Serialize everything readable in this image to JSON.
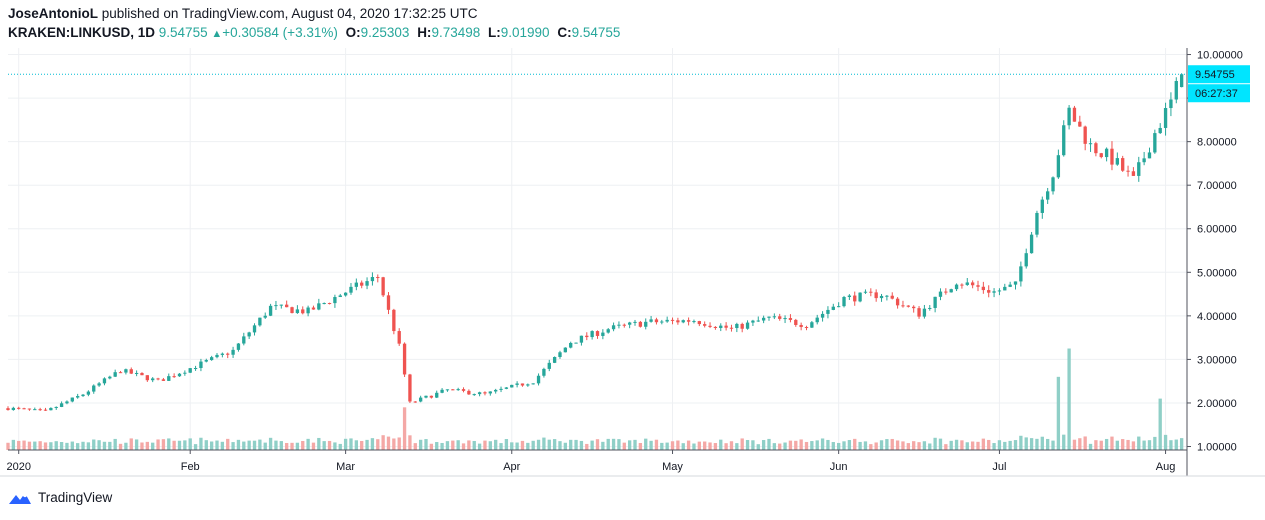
{
  "header": {
    "author": "JoseAntonioL",
    "published_text": "published on TradingView.com, August 04, 2020 17:32:25 UTC",
    "symbol": "KRAKEN:LINKUSD, 1D",
    "last": "9.54755",
    "change": "+0.30584 (+3.31%)",
    "open_label": "O:",
    "open": "9.25303",
    "high_label": "H:",
    "high": "9.73498",
    "low_label": "L:",
    "low": "9.01990",
    "close_label": "C:",
    "close": "9.54755"
  },
  "price_tag": {
    "value": "9.54755",
    "countdown": "06:27:37"
  },
  "footer": {
    "brand": "TradingView",
    "logo_icon": "tradingview-logo-icon"
  },
  "colors": {
    "up": "#26a69a",
    "down": "#ef5350",
    "up_vol": "#8fcfc7",
    "down_vol": "#f4a8a6",
    "grid": "#eef0f3",
    "tag": "#00e5ff"
  },
  "chart_data": {
    "type": "candlestick",
    "y_ticks": [
      "10.00000",
      "9.00000",
      "8.00000",
      "7.00000",
      "6.00000",
      "5.00000",
      "4.00000",
      "3.00000",
      "2.00000",
      "1.00000"
    ],
    "x_ticks": [
      "2020",
      "Feb",
      "Mar",
      "Apr",
      "May",
      "Jun",
      "Jul",
      "Aug"
    ],
    "ylim": [
      0.92,
      10.15
    ],
    "grid": true,
    "close_path": [
      [
        "2019-12-29",
        1.88
      ],
      [
        "2020-01-05",
        1.8
      ],
      [
        "2020-01-12",
        2.2
      ],
      [
        "2020-01-19",
        2.75
      ],
      [
        "2020-01-26",
        2.5
      ],
      [
        "2020-02-02",
        2.85
      ],
      [
        "2020-02-09",
        3.2
      ],
      [
        "2020-02-16",
        4.2
      ],
      [
        "2020-02-23",
        4.1
      ],
      [
        "2020-03-01",
        4.55
      ],
      [
        "2020-03-07",
        4.9
      ],
      [
        "2020-03-11",
        3.3
      ],
      [
        "2020-03-13",
        2.0
      ],
      [
        "2020-03-20",
        2.3
      ],
      [
        "2020-03-27",
        2.2
      ],
      [
        "2020-04-05",
        2.5
      ],
      [
        "2020-04-12",
        3.4
      ],
      [
        "2020-04-19",
        3.7
      ],
      [
        "2020-04-26",
        3.85
      ],
      [
        "2020-05-05",
        3.9
      ],
      [
        "2020-05-12",
        3.7
      ],
      [
        "2020-05-19",
        3.95
      ],
      [
        "2020-05-26",
        3.8
      ],
      [
        "2020-06-02",
        4.4
      ],
      [
        "2020-06-09",
        4.5
      ],
      [
        "2020-06-16",
        4.05
      ],
      [
        "2020-06-23",
        4.8
      ],
      [
        "2020-06-30",
        4.55
      ],
      [
        "2020-07-04",
        4.7
      ],
      [
        "2020-07-08",
        6.4
      ],
      [
        "2020-07-11",
        7.3
      ],
      [
        "2020-07-14",
        8.7
      ],
      [
        "2020-07-18",
        7.9
      ],
      [
        "2020-07-22",
        7.6
      ],
      [
        "2020-07-26",
        7.1
      ],
      [
        "2020-07-30",
        8.2
      ],
      [
        "2020-08-02",
        8.9
      ],
      [
        "2020-08-04",
        9.54755
      ]
    ],
    "volume_spikes": [
      [
        "2020-03-12",
        1.9
      ],
      [
        "2020-07-12",
        2.6
      ],
      [
        "2020-07-14",
        3.25
      ],
      [
        "2020-07-31",
        2.1
      ]
    ]
  }
}
